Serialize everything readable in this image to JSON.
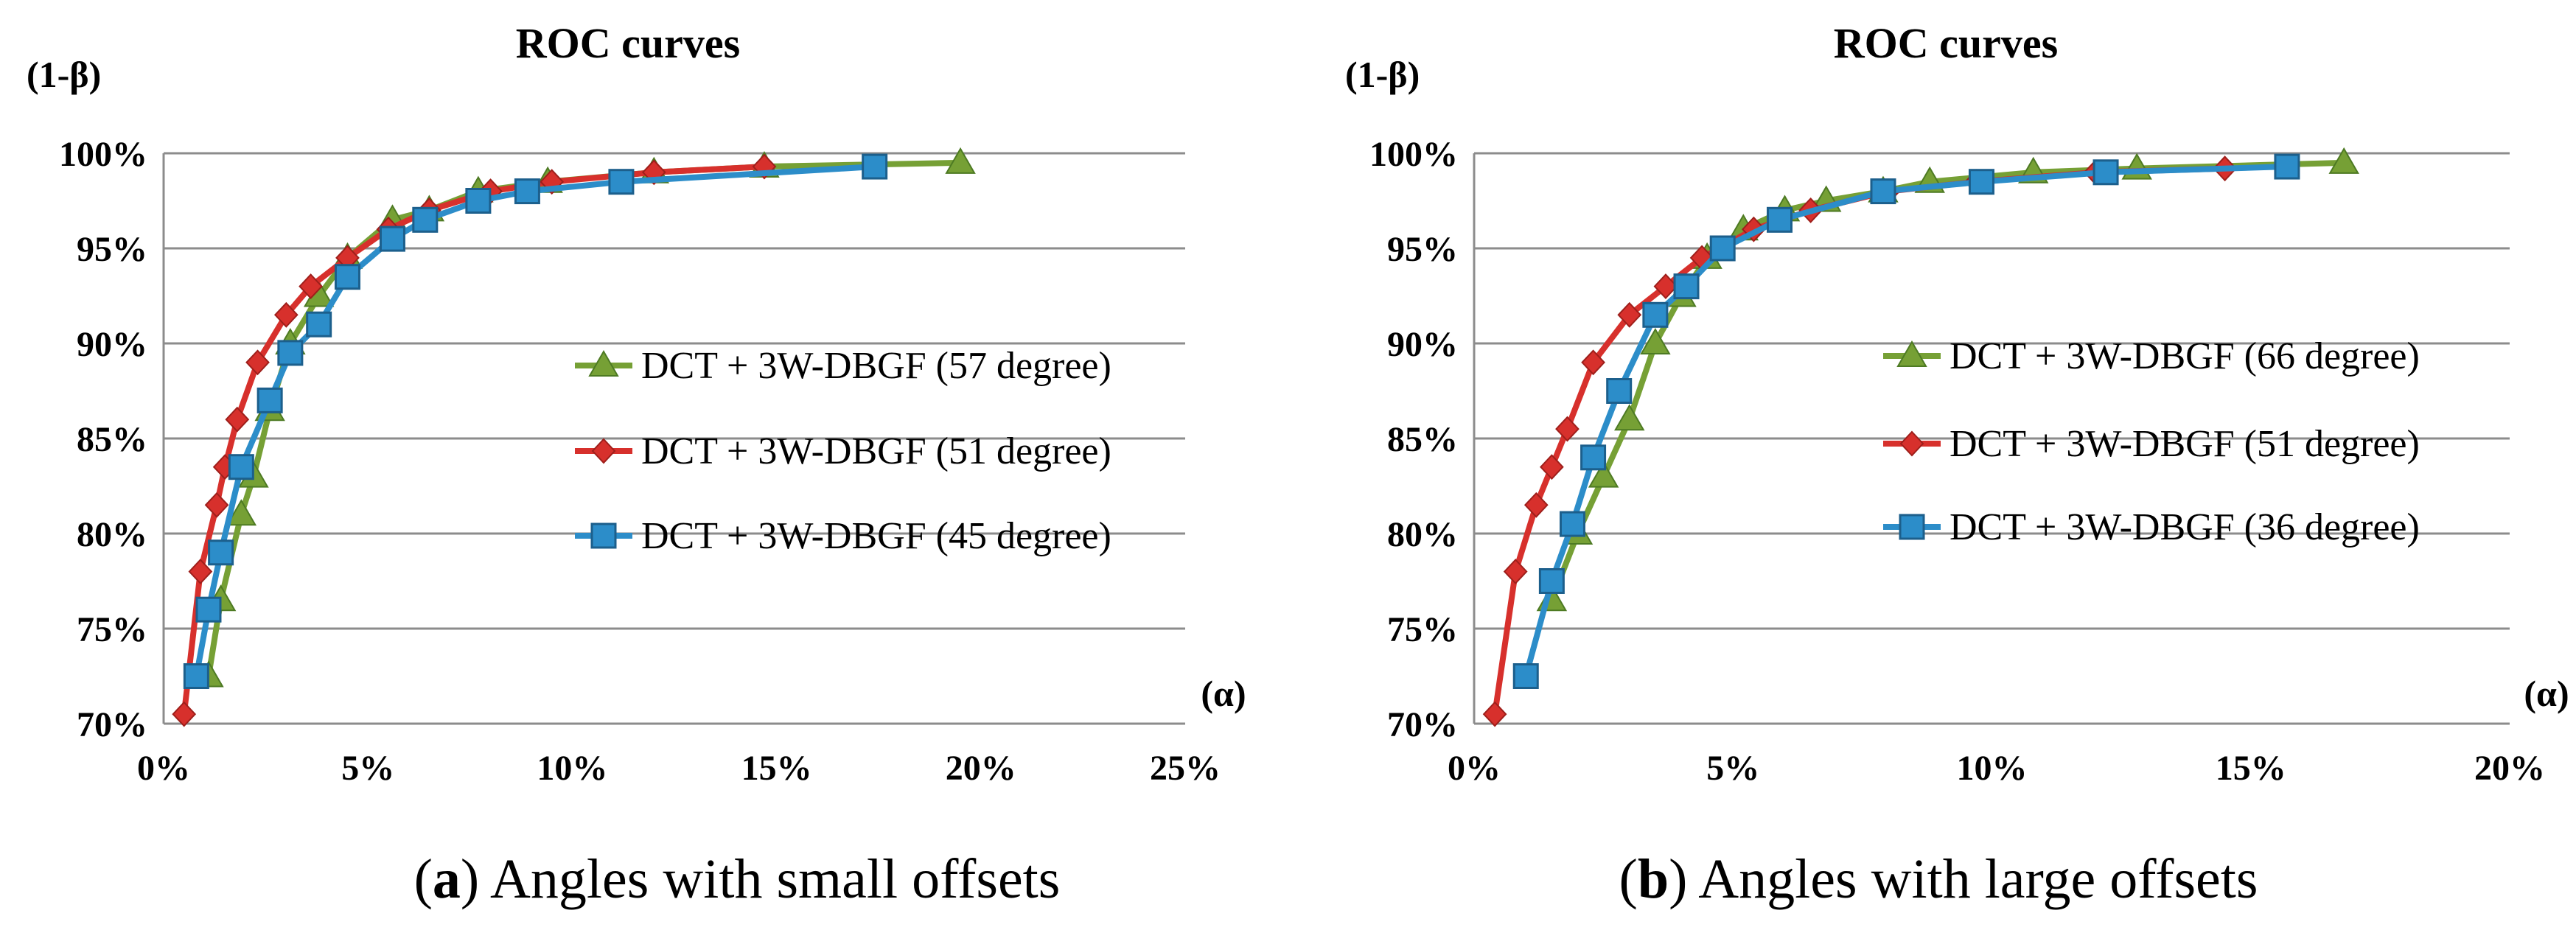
{
  "chart_data": [
    {
      "type": "line",
      "title": "ROC curves",
      "ylabel": "(1-β)",
      "xlabel": "(α)",
      "caption": {
        "letter": "a",
        "text": "Angles with small offsets"
      },
      "xlim": [
        0,
        25
      ],
      "ylim": [
        70,
        100
      ],
      "xticks": [
        0,
        5,
        10,
        15,
        20,
        25
      ],
      "xtick_labels": [
        "0%",
        "5%",
        "10%",
        "15%",
        "20%",
        "25%"
      ],
      "yticks": [
        70,
        75,
        80,
        85,
        90,
        95,
        100
      ],
      "ytick_labels": [
        "70%",
        "75%",
        "80%",
        "85%",
        "90%",
        "95%",
        "100%"
      ],
      "grid": "horizontal",
      "legend": "center-right",
      "series": [
        {
          "name": "DCT + 3W-DBGF (57 degree)",
          "marker": "triangle",
          "color": "#76a035",
          "x": [
            1.1,
            1.4,
            1.9,
            2.2,
            2.6,
            3.1,
            3.8,
            4.5,
            5.6,
            6.5,
            7.7,
            9.4,
            12.0,
            14.7,
            19.5
          ],
          "y": [
            72.5,
            76.5,
            81.0,
            83.0,
            86.5,
            90.0,
            92.5,
            94.5,
            96.5,
            97.0,
            98.0,
            98.5,
            99.0,
            99.3,
            99.5
          ]
        },
        {
          "name": "DCT + 3W-DBGF (51 degree)",
          "marker": "diamond",
          "color": "#d7302c",
          "x": [
            0.5,
            0.9,
            1.3,
            1.5,
            1.8,
            2.3,
            3.0,
            3.6,
            4.5,
            5.5,
            6.5,
            8.0,
            9.5,
            12.0,
            14.7
          ],
          "y": [
            70.5,
            78.0,
            81.5,
            83.5,
            86.0,
            89.0,
            91.5,
            93.0,
            94.5,
            96.0,
            97.0,
            98.0,
            98.5,
            99.0,
            99.3
          ]
        },
        {
          "name": "DCT + 3W-DBGF (45 degree)",
          "marker": "square",
          "color": "#2c8dc9",
          "x": [
            0.8,
            1.1,
            1.4,
            1.9,
            2.6,
            3.1,
            3.8,
            4.5,
            5.6,
            6.4,
            7.7,
            8.9,
            11.2,
            17.4
          ],
          "y": [
            72.5,
            76.0,
            79.0,
            83.5,
            87.0,
            89.5,
            91.0,
            93.5,
            95.5,
            96.5,
            97.5,
            98.0,
            98.5,
            99.3
          ]
        }
      ]
    },
    {
      "type": "line",
      "title": "ROC curves",
      "ylabel": "(1-β)",
      "xlabel": "(α)",
      "caption": {
        "letter": "b",
        "text": "Angles with large offsets"
      },
      "xlim": [
        0,
        20
      ],
      "ylim": [
        70,
        100
      ],
      "xticks": [
        0,
        5,
        10,
        15,
        20
      ],
      "xtick_labels": [
        "0%",
        "5%",
        "10%",
        "15%",
        "20%"
      ],
      "yticks": [
        70,
        75,
        80,
        85,
        90,
        95,
        100
      ],
      "ytick_labels": [
        "70%",
        "75%",
        "80%",
        "85%",
        "90%",
        "95%",
        "100%"
      ],
      "grid": "horizontal",
      "legend": "center-right",
      "series": [
        {
          "name": "DCT + 3W-DBGF (66 degree)",
          "marker": "triangle",
          "color": "#76a035",
          "x": [
            1.5,
            2.0,
            2.5,
            3.0,
            3.5,
            4.0,
            4.5,
            5.2,
            6.0,
            6.8,
            7.9,
            8.8,
            10.8,
            12.8,
            16.8
          ],
          "y": [
            76.5,
            80.0,
            83.0,
            86.0,
            90.0,
            92.5,
            94.5,
            96.0,
            97.0,
            97.5,
            98.0,
            98.5,
            99.0,
            99.2,
            99.5
          ]
        },
        {
          "name": "DCT + 3W-DBGF (51 degree)",
          "marker": "diamond",
          "color": "#d7302c",
          "x": [
            0.4,
            0.8,
            1.2,
            1.5,
            1.8,
            2.3,
            3.0,
            3.7,
            4.4,
            5.4,
            6.5,
            8.0,
            9.7,
            12.0,
            14.5
          ],
          "y": [
            70.5,
            78.0,
            81.5,
            83.5,
            85.5,
            89.0,
            91.5,
            93.0,
            94.5,
            96.0,
            97.0,
            98.0,
            98.5,
            99.0,
            99.2
          ]
        },
        {
          "name": "DCT + 3W-DBGF (36 degree)",
          "marker": "square",
          "color": "#2c8dc9",
          "x": [
            1.0,
            1.5,
            1.9,
            2.3,
            2.8,
            3.5,
            4.1,
            4.8,
            5.9,
            7.9,
            9.8,
            12.2,
            15.7
          ],
          "y": [
            72.5,
            77.5,
            80.5,
            84.0,
            87.5,
            91.5,
            93.0,
            95.0,
            96.5,
            98.0,
            98.5,
            99.0,
            99.3
          ]
        }
      ]
    }
  ]
}
